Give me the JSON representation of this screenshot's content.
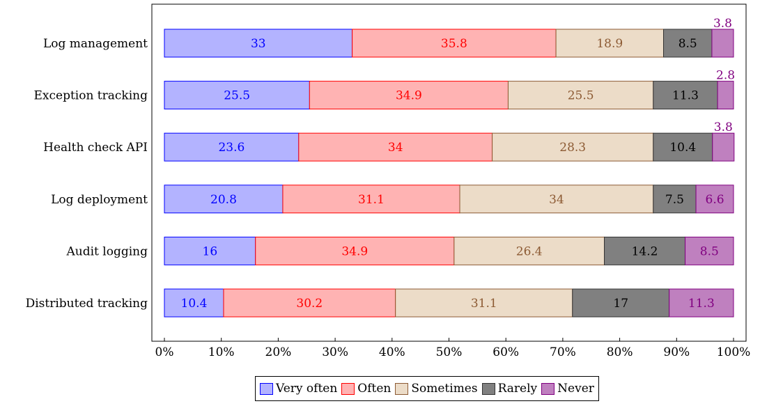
{
  "chart_data": {
    "type": "bar",
    "orientation": "horizontal",
    "stacked": true,
    "categories": [
      "Log management",
      "Exception tracking",
      "Health check API",
      "Log deployment",
      "Audit logging",
      "Distributed tracking"
    ],
    "series": [
      {
        "name": "Very often",
        "values": [
          33,
          25.5,
          23.6,
          20.8,
          16,
          10.4
        ],
        "fill": "#b3b3ff",
        "stroke": "#0000ff",
        "label_color": "#0000ff"
      },
      {
        "name": "Often",
        "values": [
          35.8,
          34.9,
          34,
          31.1,
          34.9,
          30.2
        ],
        "fill": "#ffb3b3",
        "stroke": "#ff0000",
        "label_color": "#ff0000"
      },
      {
        "name": "Sometimes",
        "values": [
          18.9,
          25.5,
          28.3,
          34,
          26.4,
          31.1
        ],
        "fill": "#ecdcc8",
        "stroke": "#8c5a33",
        "label_color": "#8c5a33"
      },
      {
        "name": "Rarely",
        "values": [
          8.5,
          11.3,
          10.4,
          7.5,
          14.2,
          17
        ],
        "fill": "#808080",
        "stroke": "#333333",
        "label_color": "#000000"
      },
      {
        "name": "Never",
        "values": [
          3.8,
          2.8,
          3.8,
          6.6,
          8.5,
          11.3
        ],
        "fill": "#bf80bf",
        "stroke": "#800080",
        "label_color": "#800080"
      }
    ],
    "xlim": [
      0,
      100
    ],
    "x_ticks": [
      "0%",
      "10%",
      "20%",
      "30%",
      "40%",
      "50%",
      "60%",
      "70%",
      "80%",
      "90%",
      "100%"
    ],
    "xlabel": "",
    "ylabel": "",
    "title": "",
    "legend_position": "bottom-center",
    "grid": false
  }
}
